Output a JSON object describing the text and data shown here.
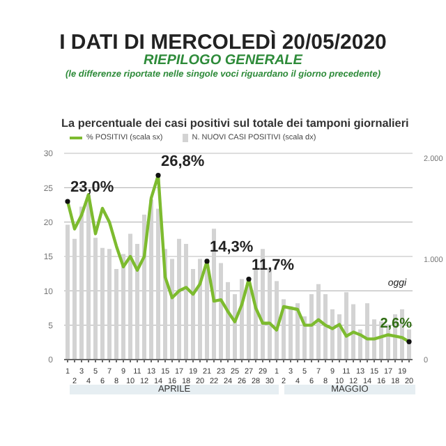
{
  "chart_data": {
    "type": "line",
    "title": "I DATI DI MERCOLEDÌ 20/05/2020",
    "subtitle": "RIEPILOGO GENERALE",
    "annotations": [
      "(le differenze riportate nelle singole voci riguardano il giorno precedente)",
      "La percentuale dei casi positivi sul totale dei tamponi giornalieri",
      "APRILE",
      "MAGGIO",
      "oggi"
    ],
    "categories": [
      "1",
      "2",
      "3",
      "4",
      "5",
      "6",
      "7",
      "8",
      "9",
      "10",
      "11",
      "12",
      "13",
      "14",
      "15",
      "16",
      "17",
      "18",
      "19",
      "20",
      "21",
      "22",
      "23",
      "24",
      "25",
      "26",
      "27",
      "28",
      "29",
      "30",
      "1",
      "2",
      "3",
      "4",
      "5",
      "6",
      "7",
      "8",
      "9",
      "10",
      "11",
      "12",
      "13",
      "14",
      "15",
      "16",
      "17",
      "18",
      "19",
      "20"
    ],
    "series": [
      {
        "name": "% POSITIVI (scala sx)",
        "color": "#7dbb2f",
        "values": [
          23.0,
          19.0,
          21.0,
          24.0,
          18.3,
          22.0,
          20.0,
          16.5,
          13.5,
          15.0,
          13.0,
          15.0,
          23.5,
          26.8,
          12.0,
          9.0,
          10.0,
          10.5,
          9.5,
          11.0,
          14.3,
          8.5,
          8.7,
          7.0,
          5.5,
          8.0,
          11.7,
          7.5,
          5.3,
          5.3,
          4.3,
          7.7,
          7.5,
          7.3,
          5.0,
          5.0,
          5.8,
          5.0,
          4.5,
          5.1,
          3.4,
          4.0,
          3.6,
          3.0,
          3.0,
          3.3,
          3.6,
          3.4,
          3.2,
          2.6
        ],
        "value_labels": [
          "23,0%",
          null,
          null,
          null,
          null,
          null,
          null,
          null,
          null,
          null,
          null,
          null,
          null,
          "26,8%",
          null,
          null,
          null,
          null,
          null,
          null,
          "14,3%",
          null,
          null,
          null,
          null,
          null,
          "11,7%",
          null,
          null,
          null,
          null,
          null,
          null,
          null,
          null,
          null,
          null,
          null,
          null,
          null,
          null,
          null,
          null,
          null,
          null,
          null,
          null,
          null,
          null,
          "2,6%"
        ]
      },
      {
        "name": "N. NUOVI CASI POSITIVI (scala dx)",
        "type": "bar",
        "axis": "y2",
        "color": "#d3d3d3",
        "values": [
          1340,
          1200,
          1520,
          1640,
          1210,
          1110,
          1100,
          900,
          1050,
          1250,
          1150,
          1440,
          1590,
          1500,
          1100,
          1000,
          1200,
          1150,
          900,
          1000,
          1000,
          1300,
          960,
          770,
          650,
          800,
          750,
          900,
          1100,
          900,
          780,
          600,
          530,
          560,
          430,
          650,
          750,
          650,
          500,
          450,
          670,
          550,
          300,
          560,
          400,
          380,
          350,
          450,
          500,
          300
        ]
      }
    ],
    "ylim": [
      0,
      30
    ],
    "yticks": [
      0,
      5,
      10,
      15,
      20,
      25,
      30
    ],
    "y2lim": [
      0,
      2050
    ],
    "y2ticks": [
      0,
      {
        "value": 1000,
        "label": "1.000"
      },
      {
        "value": 2000,
        "label": "2.000"
      }
    ],
    "grid": "y",
    "legend": "top",
    "marker": "none"
  }
}
